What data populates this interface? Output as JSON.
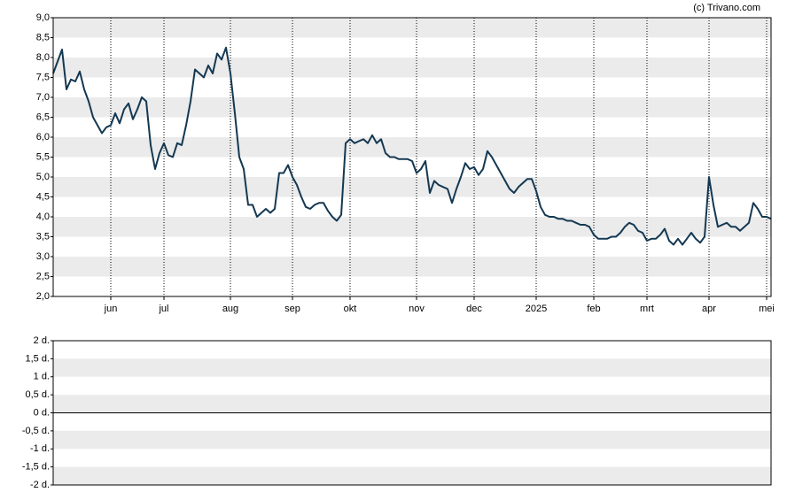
{
  "chart_data": [
    {
      "type": "line",
      "annotation": "(c) Trivano.com",
      "color": "#143852",
      "values": [
        7.6,
        7.9,
        8.2,
        7.2,
        7.45,
        7.4,
        7.65,
        7.2,
        6.9,
        6.5,
        6.3,
        6.1,
        6.25,
        6.3,
        6.6,
        6.35,
        6.7,
        6.85,
        6.45,
        6.7,
        7.0,
        6.9,
        5.8,
        5.2,
        5.6,
        5.85,
        5.55,
        5.5,
        5.85,
        5.8,
        6.3,
        6.9,
        7.7,
        7.6,
        7.5,
        7.8,
        7.6,
        8.1,
        7.95,
        8.25,
        7.6,
        6.6,
        5.5,
        5.2,
        4.3,
        4.3,
        4.0,
        4.1,
        4.2,
        4.1,
        4.2,
        5.1,
        5.1,
        5.3,
        5.0,
        4.8,
        4.5,
        4.25,
        4.2,
        4.3,
        4.35,
        4.35,
        4.15,
        4.0,
        3.9,
        4.05,
        5.85,
        5.95,
        5.85,
        5.9,
        5.95,
        5.85,
        6.05,
        5.85,
        5.95,
        5.6,
        5.5,
        5.5,
        5.45,
        5.45,
        5.45,
        5.4,
        5.1,
        5.2,
        5.4,
        4.6,
        4.9,
        4.8,
        4.75,
        4.7,
        4.35,
        4.7,
        5.0,
        5.35,
        5.2,
        5.25,
        5.05,
        5.2,
        5.65,
        5.5,
        5.3,
        5.1,
        4.9,
        4.7,
        4.6,
        4.75,
        4.85,
        4.95,
        4.95,
        4.65,
        4.25,
        4.05,
        4.0,
        4.0,
        3.95,
        3.95,
        3.9,
        3.9,
        3.85,
        3.8,
        3.8,
        3.75,
        3.55,
        3.45,
        3.45,
        3.45,
        3.5,
        3.5,
        3.6,
        3.75,
        3.85,
        3.8,
        3.65,
        3.6,
        3.4,
        3.45,
        3.45,
        3.55,
        3.7,
        3.4,
        3.3,
        3.45,
        3.3,
        3.45,
        3.6,
        3.45,
        3.35,
        3.5,
        5.0,
        4.3,
        3.75,
        3.8,
        3.85,
        3.75,
        3.75,
        3.65,
        3.75,
        3.85,
        4.35,
        4.2,
        4.0,
        4.0,
        3.95
      ],
      "xlim": [
        0,
        162
      ],
      "xticks": [
        {
          "value": 13,
          "label": "jun"
        },
        {
          "value": 25,
          "label": "jul"
        },
        {
          "value": 40,
          "label": "aug"
        },
        {
          "value": 54,
          "label": "sep"
        },
        {
          "value": 67,
          "label": "okt"
        },
        {
          "value": 82,
          "label": "nov"
        },
        {
          "value": 95,
          "label": "dec"
        },
        {
          "value": 109,
          "label": "2025"
        },
        {
          "value": 122,
          "label": "feb"
        },
        {
          "value": 134,
          "label": "mrt"
        },
        {
          "value": 148,
          "label": "apr"
        },
        {
          "value": 161,
          "label": "mei"
        }
      ],
      "ylim": [
        2,
        9
      ],
      "yticks": [
        {
          "value": 9,
          "label": "9,0"
        },
        {
          "value": 8.5,
          "label": "8,5"
        },
        {
          "value": 8,
          "label": "8,0"
        },
        {
          "value": 7.5,
          "label": "7,5"
        },
        {
          "value": 7,
          "label": "7,0"
        },
        {
          "value": 6.5,
          "label": "6,5"
        },
        {
          "value": 6,
          "label": "6,0"
        },
        {
          "value": 5.5,
          "label": "5,5"
        },
        {
          "value": 5,
          "label": "5,0"
        },
        {
          "value": 4.5,
          "label": "4,5"
        },
        {
          "value": 4,
          "label": "4,0"
        },
        {
          "value": 3.5,
          "label": "3,5"
        },
        {
          "value": 3,
          "label": "3,0"
        },
        {
          "value": 2.5,
          "label": "2,5"
        },
        {
          "value": 2,
          "label": "2,0"
        }
      ]
    },
    {
      "type": "volume",
      "ylim": [
        -2,
        2
      ],
      "yticks": [
        {
          "value": 2,
          "label": "2 d."
        },
        {
          "value": 1.5,
          "label": "1,5 d."
        },
        {
          "value": 1,
          "label": "1 d."
        },
        {
          "value": 0.5,
          "label": "0,5 d."
        },
        {
          "value": 0,
          "label": "0 d."
        },
        {
          "value": -0.5,
          "label": "-0,5 d."
        },
        {
          "value": -1,
          "label": "-1 d."
        },
        {
          "value": -1.5,
          "label": "-1,5 d."
        },
        {
          "value": -2,
          "label": "-2 d."
        }
      ]
    }
  ]
}
